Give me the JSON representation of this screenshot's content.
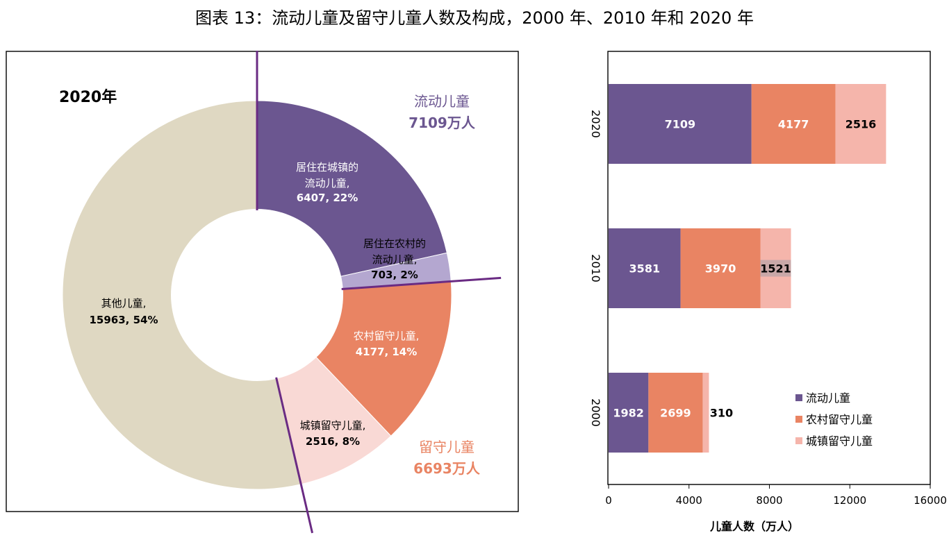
{
  "title": "图表 13：流动儿童及留守儿童人数及构成，2000 年、2010 年和 2020 年",
  "colors": {
    "migrant": "#6b5690",
    "migrant_rural": "#b4a7d0",
    "rural_left": "#e98463",
    "urban_left": "#f9d9d5",
    "other": "#dfd8c2",
    "divider": "#6a2b83",
    "stack_urban_left": "#f5b5ab"
  },
  "chart_data": [
    {
      "type": "pie",
      "title": "2020年",
      "slices": [
        {
          "key": "s_mig_urban",
          "label": "居住在城镇的流动儿童,",
          "value_text": "6407, 22%",
          "value": 6407,
          "percent": 22,
          "color": "#6b5690"
        },
        {
          "key": "s_mig_rural",
          "label": "居住在农村的流动儿童,",
          "value_text": "703, 2%",
          "value": 703,
          "percent": 2,
          "color": "#b4a7d0"
        },
        {
          "key": "s_left_rural",
          "label": "农村留守儿童,",
          "value_text": "4177, 14%",
          "value": 4177,
          "percent": 14,
          "color": "#e98463"
        },
        {
          "key": "s_left_urban",
          "label": "城镇留守儿童,",
          "value_text": "2516, 8%",
          "value": 2516,
          "percent": 8,
          "color": "#f9d9d5"
        },
        {
          "key": "s_other",
          "label": "其他儿童,",
          "value_text": "15963, 54%",
          "value": 15963,
          "percent": 54,
          "color": "#dfd8c2"
        }
      ],
      "group_labels": {
        "migrant": {
          "name": "流动儿童",
          "value": "7109万人"
        },
        "left_behind": {
          "name": "留守儿童",
          "value": "6693万人"
        }
      }
    },
    {
      "type": "bar",
      "orientation": "horizontal",
      "stacked": true,
      "categories": [
        "2020",
        "2010",
        "2000"
      ],
      "series": [
        {
          "name": "流动儿童",
          "values": [
            7109,
            3581,
            1982
          ],
          "color": "#6b5690"
        },
        {
          "name": "农村留守儿童",
          "values": [
            4177,
            3970,
            2699
          ],
          "color": "#e98463"
        },
        {
          "name": "城镇留守儿童",
          "values": [
            2516,
            1521,
            310
          ],
          "color": "#f5b5ab"
        }
      ],
      "data_labels": {
        "2020": [
          "7109",
          "4177",
          "2516"
        ],
        "2010": [
          "3581",
          "3970",
          "1521"
        ],
        "2000": [
          "1982",
          "2699",
          "310"
        ]
      },
      "xlabel": "儿童人数（万人）",
      "xlim": [
        0,
        16000
      ],
      "xticks": [
        "0",
        "4000",
        "8000",
        "12000",
        "16000"
      ],
      "legend": "bottom-right"
    }
  ]
}
